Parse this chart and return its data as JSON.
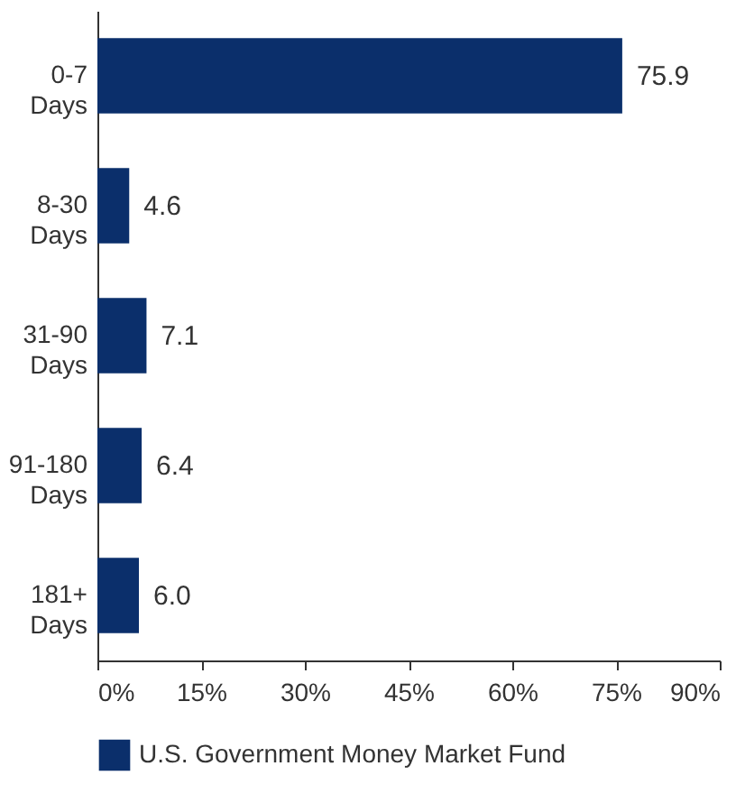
{
  "chart_data": {
    "type": "bar",
    "orientation": "horizontal",
    "categories": [
      "0-7 Days",
      "8-30 Days",
      "31-90 Days",
      "91-180 Days",
      "181+ Days"
    ],
    "series": [
      {
        "name": "U.S. Government Money Market Fund",
        "color": "#0b2f6b",
        "values": [
          75.9,
          4.6,
          7.1,
          6.4,
          6.0
        ]
      }
    ],
    "value_labels": [
      "75.9",
      "4.6",
      "7.1",
      "6.4",
      "6.0"
    ],
    "xlim": [
      0,
      90
    ],
    "xticks": [
      {
        "value": 0,
        "label": "0%"
      },
      {
        "value": 15,
        "label": "15%"
      },
      {
        "value": 30,
        "label": "30%"
      },
      {
        "value": 45,
        "label": "45%"
      },
      {
        "value": 60,
        "label": "60%"
      },
      {
        "value": 75,
        "label": "75%"
      },
      {
        "value": 90,
        "label": "90%"
      }
    ],
    "grid": false,
    "legend": "bottom"
  }
}
